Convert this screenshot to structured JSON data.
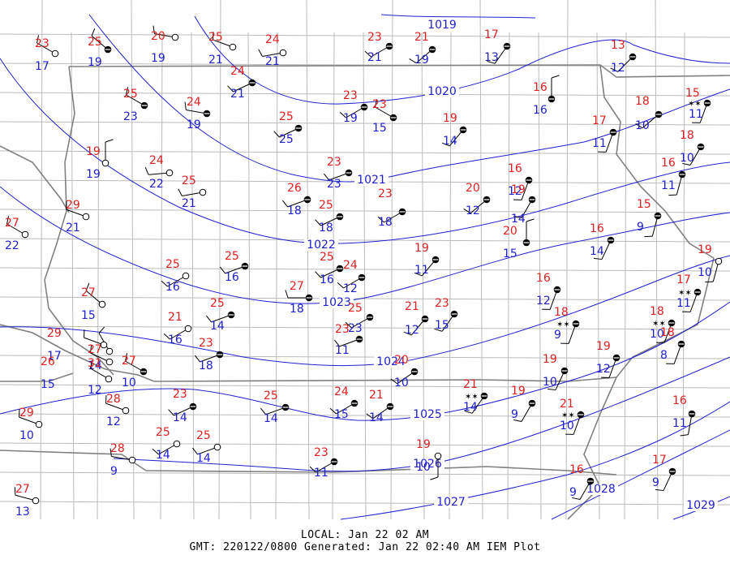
{
  "footer": {
    "local": "LOCAL: Jan 22 02 AM",
    "gmt": "GMT: 220122/0800 Generated: Jan 22 02:40 AM IEM Plot"
  },
  "colors": {
    "temperature": "#e02020",
    "dewpoint": "#2020d0",
    "isobar": "#2020d0",
    "county_lines": "#bbbbbb",
    "state_lines": "#808080",
    "station": "#000000"
  },
  "isobar_labels": [
    "1019",
    "1020",
    "1021",
    "1022",
    "1023",
    "1024",
    "1025",
    "1026",
    "1027",
    "1028",
    "1029"
  ],
  "stations": [
    {
      "t": "23",
      "d": "17"
    },
    {
      "t": "25",
      "d": "19"
    },
    {
      "t": "20",
      "d": "19"
    },
    {
      "t": "25",
      "d": "21"
    },
    {
      "t": "24",
      "d": "21"
    },
    {
      "t": "23",
      "d": "21"
    },
    {
      "t": "21",
      "d": "19"
    },
    {
      "t": "17",
      "d": "13"
    },
    {
      "t": "24",
      "d": "21"
    },
    {
      "t": "13",
      "d": "12"
    },
    {
      "t": "25",
      "d": "23"
    },
    {
      "t": "24",
      "d": "19"
    },
    {
      "t": "23",
      "d": "19"
    },
    {
      "t": "23",
      "d": "15"
    },
    {
      "t": "16",
      "d": "16"
    },
    {
      "t": "15",
      "d": "11"
    },
    {
      "t": "18",
      "d": "10"
    },
    {
      "t": "25",
      "d": "25"
    },
    {
      "t": "19",
      "d": "14"
    },
    {
      "t": "17",
      "d": "11"
    },
    {
      "t": "19",
      "d": "19"
    },
    {
      "t": "24",
      "d": "22"
    },
    {
      "t": "25",
      "d": "21"
    },
    {
      "t": "23",
      "d": "23"
    },
    {
      "t": "18",
      "d": "10"
    },
    {
      "t": "16",
      "d": "11"
    },
    {
      "t": "16",
      "d": "12"
    },
    {
      "t": "29",
      "d": "21"
    },
    {
      "t": "26",
      "d": "18"
    },
    {
      "t": "25",
      "d": "18"
    },
    {
      "t": "23",
      "d": "18"
    },
    {
      "t": "20",
      "d": "12"
    },
    {
      "t": "19",
      "d": "14"
    },
    {
      "t": "15",
      "d": "9"
    },
    {
      "t": "27",
      "d": "22"
    },
    {
      "t": "20",
      "d": "15"
    },
    {
      "t": "16",
      "d": "14"
    },
    {
      "t": "25",
      "d": "16"
    },
    {
      "t": "25",
      "d": "16"
    },
    {
      "t": "25",
      "d": "16"
    },
    {
      "t": "24",
      "d": "12"
    },
    {
      "t": "19",
      "d": "11"
    },
    {
      "t": "19",
      "d": "10"
    },
    {
      "t": "27",
      "d": "15"
    },
    {
      "t": "27",
      "d": "18"
    },
    {
      "t": "16",
      "d": "12"
    },
    {
      "t": "17",
      "d": "11"
    },
    {
      "t": "25",
      "d": "14"
    },
    {
      "t": "25",
      "d": "23"
    },
    {
      "t": "21",
      "d": "12"
    },
    {
      "t": "23",
      "d": "15"
    },
    {
      "t": "18",
      "d": "9"
    },
    {
      "t": "18",
      "d": "10"
    },
    {
      "t": "21",
      "d": "16"
    },
    {
      "t": "23",
      "d": "11"
    },
    {
      "t": "29",
      "d": "17"
    },
    {
      "t": "27",
      "d": "14"
    },
    {
      "t": "26",
      "d": "15"
    },
    {
      "t": "23",
      "d": "18"
    },
    {
      "t": "31",
      "d": "12"
    },
    {
      "t": "27",
      "d": "10"
    },
    {
      "t": "20",
      "d": "10"
    },
    {
      "t": "19",
      "d": "10"
    },
    {
      "t": "19",
      "d": "12"
    },
    {
      "t": "18",
      "d": "8"
    },
    {
      "t": "21",
      "d": "14"
    },
    {
      "t": "24",
      "d": "15"
    },
    {
      "t": "21",
      "d": "14"
    },
    {
      "t": "25",
      "d": "14"
    },
    {
      "t": "23",
      "d": "14"
    },
    {
      "t": "28",
      "d": "12"
    },
    {
      "t": "19",
      "d": "9"
    },
    {
      "t": "21",
      "d": "10"
    },
    {
      "t": "16",
      "d": "11"
    },
    {
      "t": "29",
      "d": "10"
    },
    {
      "t": "25",
      "d": "14"
    },
    {
      "t": "25",
      "d": "14"
    },
    {
      "t": "28",
      "d": "9"
    },
    {
      "t": "19",
      "d": "10"
    },
    {
      "t": "23",
      "d": "11"
    },
    {
      "t": "16",
      "d": "9"
    },
    {
      "t": "17",
      "d": "9"
    },
    {
      "t": "27",
      "d": "13"
    }
  ]
}
